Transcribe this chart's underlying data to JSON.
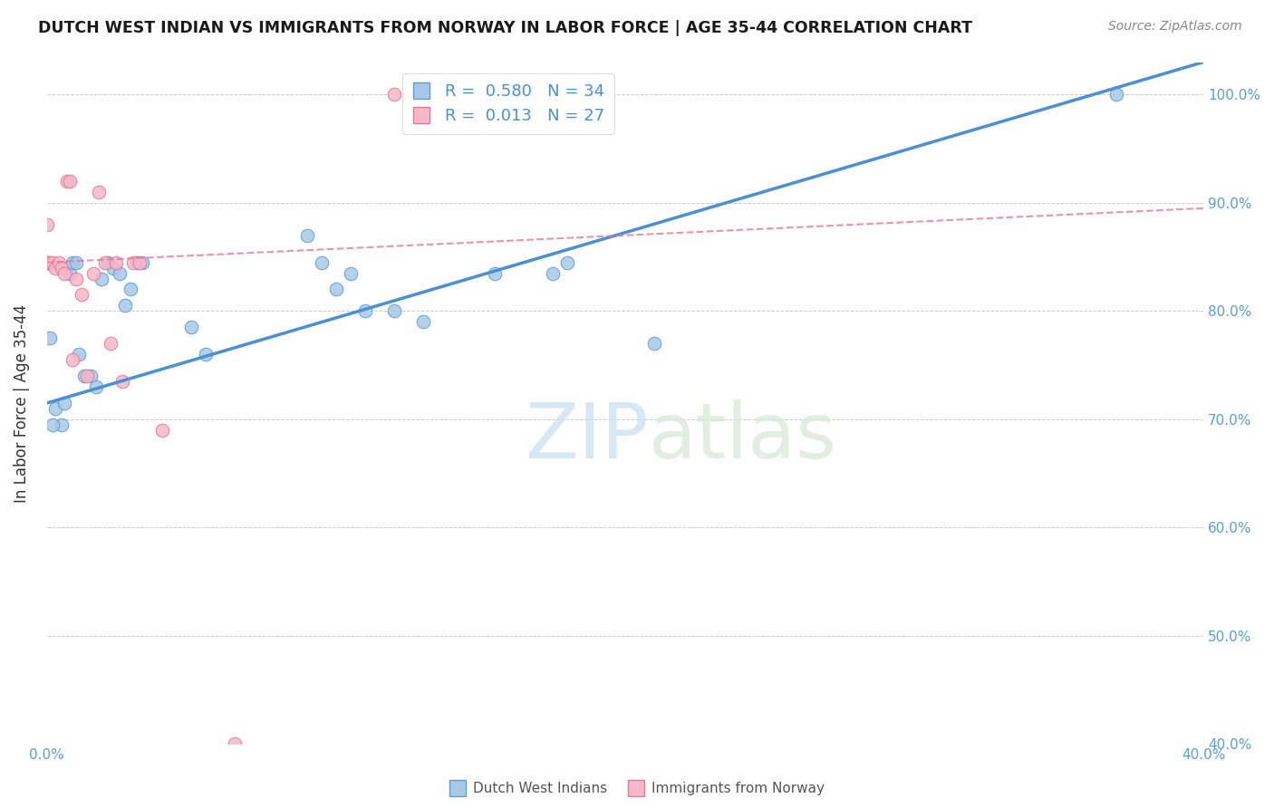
{
  "title": "DUTCH WEST INDIAN VS IMMIGRANTS FROM NORWAY IN LABOR FORCE | AGE 35-44 CORRELATION CHART",
  "source": "Source: ZipAtlas.com",
  "ylabel": "In Labor Force | Age 35-44",
  "xlim": [
    0.0,
    0.4
  ],
  "ylim": [
    0.4,
    1.03
  ],
  "yticks": [
    0.4,
    0.5,
    0.6,
    0.7,
    0.8,
    0.9,
    1.0
  ],
  "xticks": [
    0.0,
    0.05,
    0.1,
    0.15,
    0.2,
    0.25,
    0.3,
    0.35,
    0.4
  ],
  "ytick_labels": [
    "40.0%",
    "50.0%",
    "60.0%",
    "70.0%",
    "80.0%",
    "90.0%",
    "100.0%"
  ],
  "xtick_labels": [
    "0.0%",
    "",
    "",
    "",
    "",
    "",
    "",
    "",
    "40.0%"
  ],
  "blue_color": "#a8c8e8",
  "pink_color": "#f4b8c8",
  "blue_edge_color": "#5a9fd4",
  "pink_edge_color": "#e87898",
  "blue_line_color": "#4a90d4",
  "pink_line_color": "#e87898",
  "right_tick_color": "#5a9fd4",
  "legend_blue_R": "0.580",
  "legend_blue_N": "34",
  "legend_pink_R": "0.013",
  "legend_pink_N": "27",
  "blue_scatter_x": [
    0.001,
    0.003,
    0.005,
    0.006,
    0.008,
    0.009,
    0.01,
    0.011,
    0.013,
    0.015,
    0.017,
    0.019,
    0.021,
    0.023,
    0.025,
    0.027,
    0.029,
    0.031,
    0.033,
    0.05,
    0.055,
    0.09,
    0.095,
    0.1,
    0.105,
    0.11,
    0.12,
    0.13,
    0.155,
    0.175,
    0.18,
    0.21,
    0.37,
    0.002
  ],
  "blue_scatter_y": [
    0.775,
    0.71,
    0.695,
    0.715,
    0.835,
    0.845,
    0.845,
    0.76,
    0.74,
    0.74,
    0.73,
    0.83,
    0.845,
    0.84,
    0.835,
    0.805,
    0.82,
    0.845,
    0.845,
    0.785,
    0.76,
    0.87,
    0.845,
    0.82,
    0.835,
    0.8,
    0.8,
    0.79,
    0.835,
    0.835,
    0.845,
    0.77,
    1.0,
    0.695
  ],
  "pink_scatter_x": [
    0.0,
    0.0,
    0.0,
    0.0,
    0.001,
    0.002,
    0.003,
    0.004,
    0.005,
    0.006,
    0.007,
    0.008,
    0.009,
    0.01,
    0.012,
    0.014,
    0.016,
    0.018,
    0.02,
    0.022,
    0.024,
    0.026,
    0.03,
    0.032,
    0.04,
    0.065,
    0.12
  ],
  "pink_scatter_y": [
    0.845,
    0.845,
    0.845,
    0.88,
    0.845,
    0.845,
    0.84,
    0.845,
    0.84,
    0.835,
    0.92,
    0.92,
    0.755,
    0.83,
    0.815,
    0.74,
    0.835,
    0.91,
    0.845,
    0.77,
    0.845,
    0.735,
    0.845,
    0.845,
    0.69,
    0.4,
    1.0
  ],
  "blue_trendline_x": [
    0.0,
    0.4
  ],
  "blue_trendline_y": [
    0.715,
    1.03
  ],
  "pink_trendline_x": [
    0.0,
    0.4
  ],
  "pink_trendline_y": [
    0.845,
    0.895
  ],
  "watermark_zip": "ZIP",
  "watermark_atlas": "atlas",
  "background_color": "#ffffff",
  "grid_color": "#cccccc",
  "bottom_legend_label1": "Dutch West Indians",
  "bottom_legend_label2": "Immigrants from Norway"
}
